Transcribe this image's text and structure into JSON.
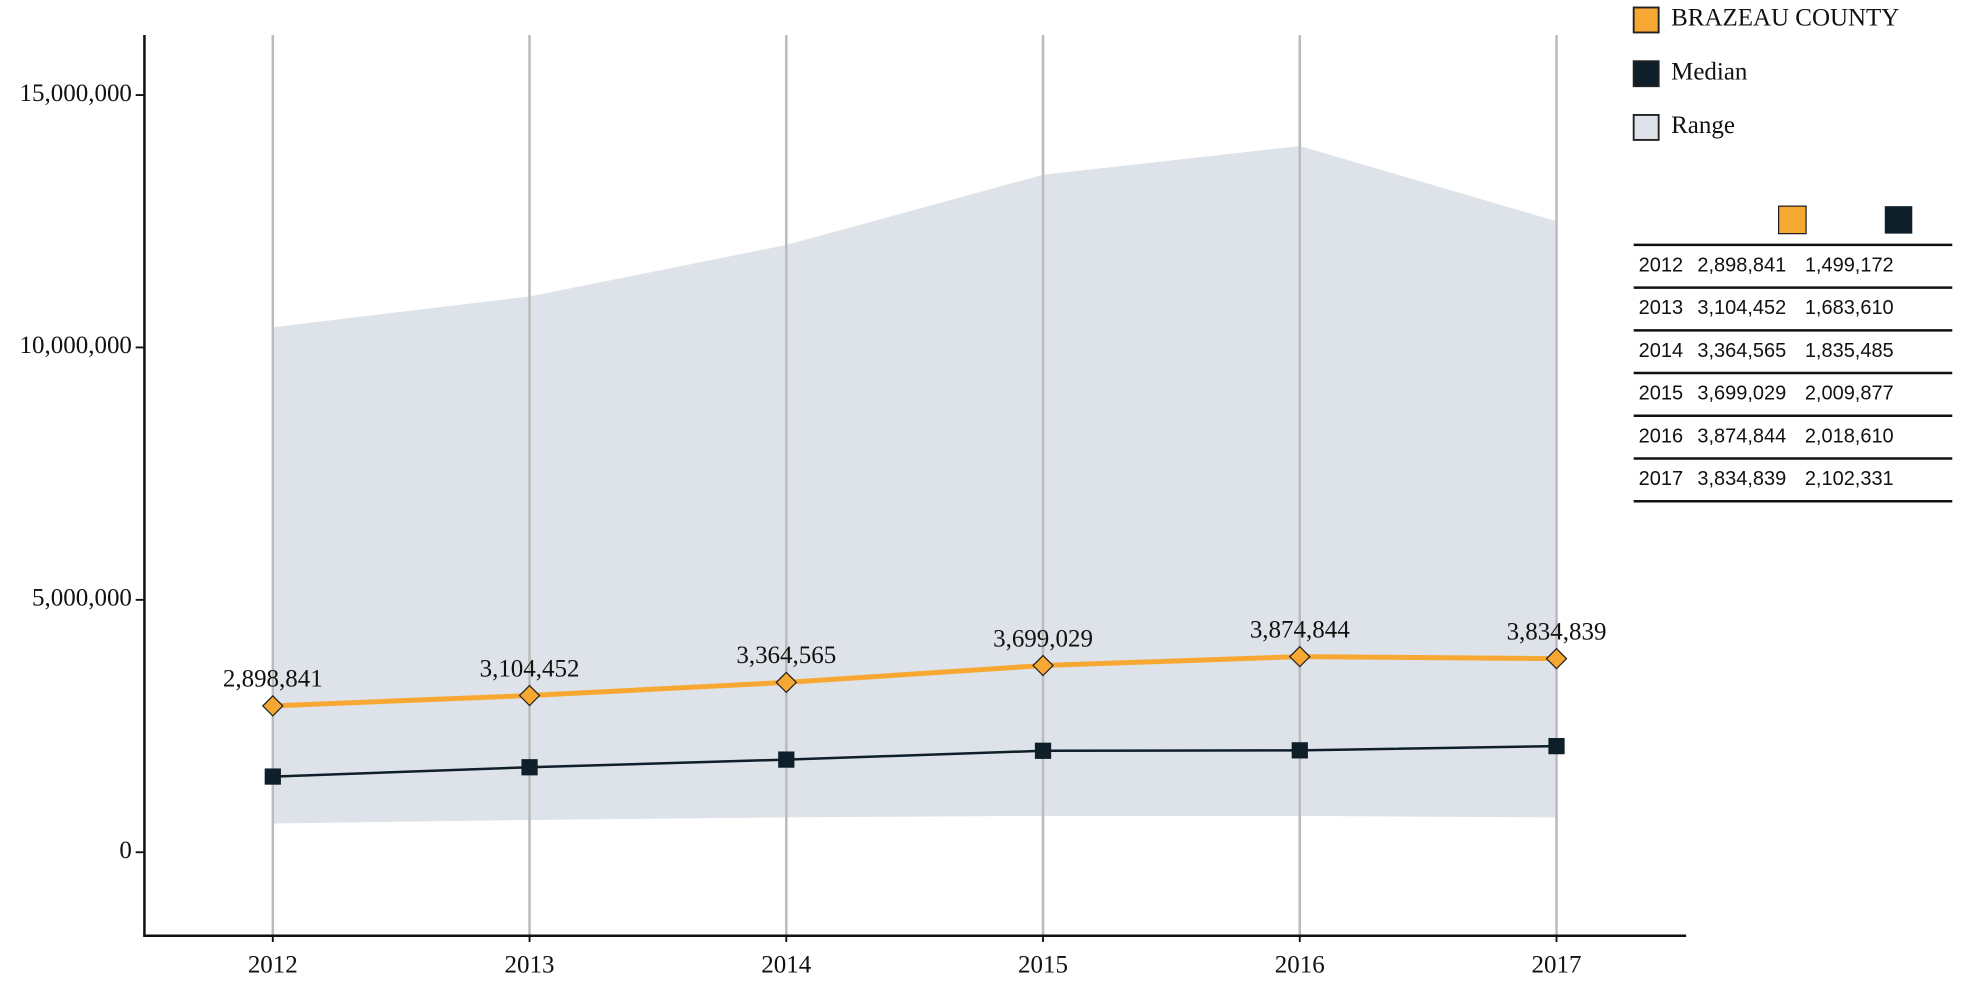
{
  "chart_data": {
    "type": "line",
    "categories": [
      "2012",
      "2013",
      "2014",
      "2015",
      "2016",
      "2017"
    ],
    "series": [
      {
        "name": "BRAZEAU COUNTY",
        "color": "#f7a833",
        "marker": "diamond",
        "values": [
          2898841,
          3104452,
          3364565,
          3699029,
          3874844,
          3834839
        ],
        "value_labels": [
          "2,898,841",
          "3,104,452",
          "3,364,565",
          "3,699,029",
          "3,874,844",
          "3,834,839"
        ]
      },
      {
        "name": "Median",
        "color": "#0e1f2a",
        "marker": "square",
        "values": [
          1499172,
          1683610,
          1835485,
          2009877,
          2018610,
          2102331
        ],
        "value_labels": [
          "1,499,172",
          "1,683,610",
          "1,835,485",
          "2,009,877",
          "2,018,610",
          "2,102,331"
        ]
      }
    ],
    "range": {
      "name": "Range",
      "color": "#dde3e8",
      "upper": [
        10400000,
        11010000,
        12030000,
        13420000,
        13990000,
        12500000
      ],
      "lower": [
        570000,
        640000,
        690000,
        720000,
        720000,
        690000
      ]
    },
    "ylim": [
      -1630000,
      16190000
    ],
    "yticks": [
      0,
      {
        "value": 5000000,
        "label": "5,000,000"
      },
      {
        "value": 10000000,
        "label": "10,000,000"
      },
      {
        "value": 15000000,
        "label": "15,000,000"
      }
    ],
    "grid": "x",
    "legend": "top-right"
  }
}
